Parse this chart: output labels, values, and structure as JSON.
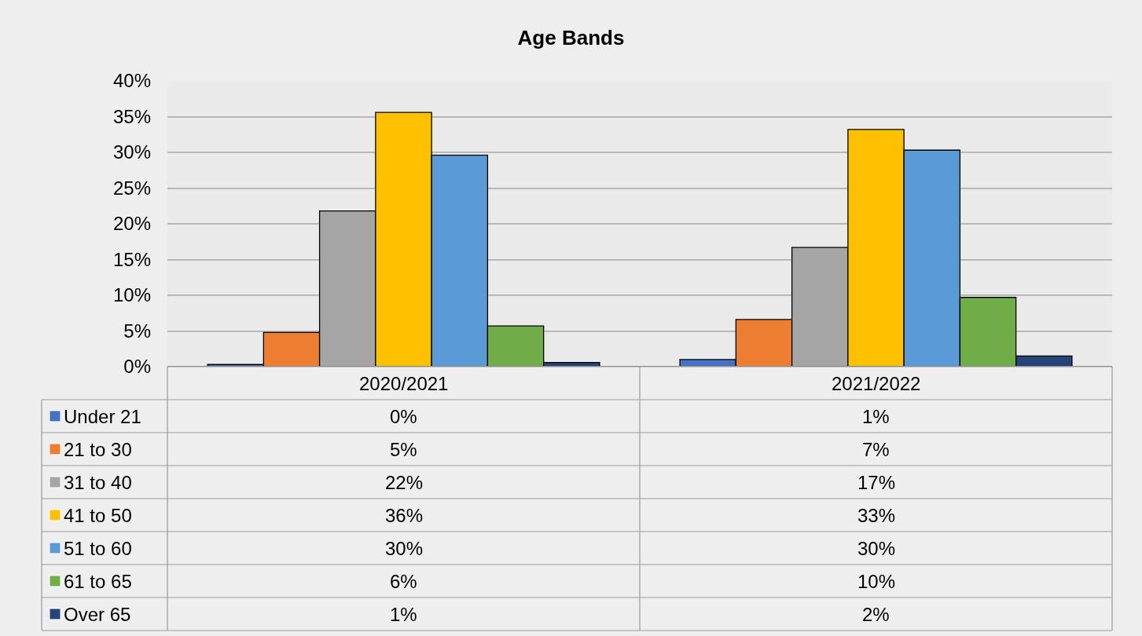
{
  "chart_data": {
    "type": "bar",
    "title": "Age Bands",
    "categories": [
      "2020/2021",
      "2021/2022"
    ],
    "series": [
      {
        "name": "Under 21",
        "color": "#4472c4",
        "values": [
          0.3,
          1.0
        ],
        "value_labels": [
          "0%",
          "1%"
        ]
      },
      {
        "name": "21 to 30",
        "color": "#ed7d31",
        "values": [
          4.8,
          6.6
        ],
        "value_labels": [
          "5%",
          "7%"
        ]
      },
      {
        "name": "31 to 40",
        "color": "#a5a5a5",
        "values": [
          21.8,
          16.7
        ],
        "value_labels": [
          "22%",
          "17%"
        ]
      },
      {
        "name": "41 to 50",
        "color": "#ffc000",
        "values": [
          35.6,
          33.2
        ],
        "value_labels": [
          "36%",
          "33%"
        ]
      },
      {
        "name": "51 to 60",
        "color": "#5b9bd5",
        "values": [
          29.6,
          30.3
        ],
        "value_labels": [
          "30%",
          "30%"
        ]
      },
      {
        "name": "61 to 65",
        "color": "#70ad47",
        "values": [
          5.7,
          9.7
        ],
        "value_labels": [
          "6%",
          "10%"
        ]
      },
      {
        "name": "Over 65",
        "color": "#264478",
        "values": [
          0.6,
          1.5
        ],
        "value_labels": [
          "1%",
          "2%"
        ]
      }
    ],
    "ylim": [
      0,
      40
    ],
    "yticks": [
      {
        "value": 0,
        "label": "0%"
      },
      {
        "value": 5,
        "label": "5%"
      },
      {
        "value": 10,
        "label": "10%"
      },
      {
        "value": 15,
        "label": "15%"
      },
      {
        "value": 20,
        "label": "20%"
      },
      {
        "value": 25,
        "label": "25%"
      },
      {
        "value": 30,
        "label": "30%"
      },
      {
        "value": 35,
        "label": "35%"
      },
      {
        "value": 40,
        "label": "40%"
      }
    ],
    "grid": "y",
    "legend": "bottom left"
  }
}
